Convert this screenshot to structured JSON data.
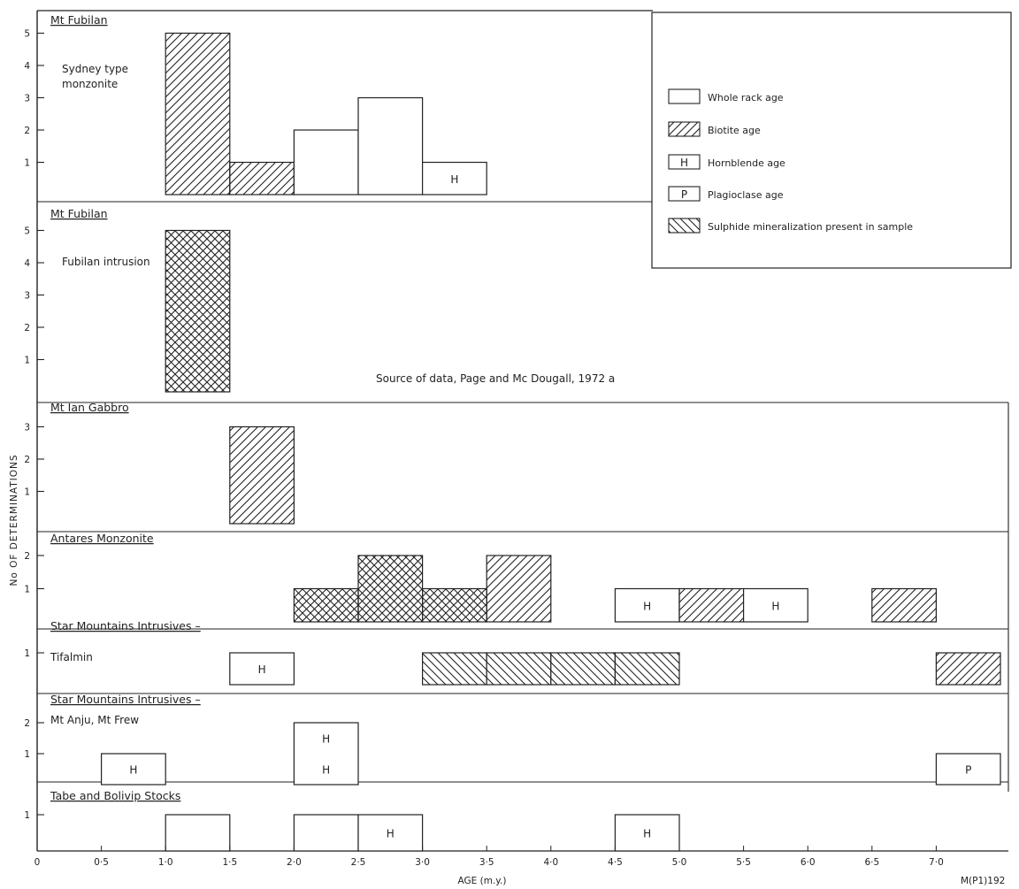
{
  "chart_data": {
    "type": "bar",
    "xlabel": "AGE (m.y.)",
    "ylabel": "No OF DETERMINATIONS",
    "x_ticks": [
      "0",
      "0·5",
      "1·0",
      "1·5",
      "2·0",
      "2·5",
      "3·0",
      "3·5",
      "4·0",
      "4·5",
      "5·0",
      "5·5",
      "6·0",
      "6·5",
      "7·0"
    ],
    "xlim": [
      0,
      7.5
    ],
    "source_note": "Source of data, Page and Mc Dougall, 1972 a",
    "figure_code": "M(P1)192",
    "legend": [
      {
        "key": "whole_rock",
        "label": "Whole rack age"
      },
      {
        "key": "biotite",
        "label": "Biotite age"
      },
      {
        "key": "hornblende",
        "label": "Hornblende age",
        "letter": "H"
      },
      {
        "key": "plagioclase",
        "label": "Plagioclase age",
        "letter": "P"
      },
      {
        "key": "sulphide",
        "label": "Sulphide mineralization present in sample"
      }
    ],
    "panels": [
      {
        "title": "Mt Fubilan",
        "subtitle": [
          "Sydney type",
          "monzonite"
        ],
        "yticks": [
          "1",
          "2",
          "3",
          "4",
          "5"
        ],
        "ymax": 5,
        "bars": [
          {
            "x0": 1.0,
            "x1": 1.5,
            "value": 5,
            "type": "biotite"
          },
          {
            "x0": 1.5,
            "x1": 2.0,
            "value": 1,
            "type": "biotite"
          },
          {
            "x0": 2.0,
            "x1": 2.5,
            "value": 2,
            "type": "whole_rock"
          },
          {
            "x0": 2.5,
            "x1": 3.0,
            "value": 3,
            "type": "whole_rock"
          },
          {
            "x0": 3.0,
            "x1": 3.5,
            "value": 1,
            "type": "hornblende",
            "letters": [
              "H"
            ]
          }
        ]
      },
      {
        "title": "Mt Fubilan",
        "subtitle": [
          "Fubilan intrusion"
        ],
        "yticks": [
          "1",
          "2",
          "3",
          "4",
          "5"
        ],
        "ymax": 5,
        "bars": [
          {
            "x0": 1.0,
            "x1": 1.5,
            "value": 5,
            "type": "biotite",
            "sulphide": 5
          }
        ]
      },
      {
        "title": "Mt Ian Gabbro",
        "subtitle": [],
        "yticks": [
          "1",
          "2",
          "3"
        ],
        "ymax": 3,
        "bars": [
          {
            "x0": 1.5,
            "x1": 2.0,
            "value": 3,
            "type": "biotite"
          }
        ]
      },
      {
        "title": "Antares Monzonite",
        "subtitle": [],
        "yticks": [
          "1",
          "2"
        ],
        "ymax": 2,
        "bars": [
          {
            "x0": 2.0,
            "x1": 2.5,
            "value": 1,
            "type": "biotite",
            "sulphide": 1
          },
          {
            "x0": 2.5,
            "x1": 3.0,
            "value": 2,
            "type": "biotite",
            "sulphide": 2
          },
          {
            "x0": 3.0,
            "x1": 3.5,
            "value": 1,
            "type": "biotite",
            "sulphide": 1
          },
          {
            "x0": 3.5,
            "x1": 4.0,
            "value": 2,
            "type": "biotite"
          },
          {
            "x0": 4.5,
            "x1": 5.0,
            "value": 1,
            "type": "hornblende",
            "letters": [
              "H"
            ]
          },
          {
            "x0": 5.0,
            "x1": 5.5,
            "value": 1,
            "type": "biotite"
          },
          {
            "x0": 5.5,
            "x1": 6.0,
            "value": 1,
            "type": "hornblende",
            "letters": [
              "H"
            ]
          },
          {
            "x0": 6.5,
            "x1": 7.0,
            "value": 1,
            "type": "biotite"
          }
        ]
      },
      {
        "title": "Star Mountains Intrusives –",
        "subtitle": [
          "Tifalmin"
        ],
        "yticks": [
          "1"
        ],
        "ymax": 1,
        "bars": [
          {
            "x0": 1.5,
            "x1": 2.0,
            "value": 1,
            "type": "hornblende",
            "letters": [
              "H"
            ]
          },
          {
            "x0": 3.0,
            "x1": 3.5,
            "value": 1,
            "type": "whole_rock",
            "sulphide": 1
          },
          {
            "x0": 3.5,
            "x1": 4.0,
            "value": 1,
            "type": "whole_rock",
            "sulphide": 1
          },
          {
            "x0": 4.0,
            "x1": 4.5,
            "value": 1,
            "type": "whole_rock",
            "sulphide": 1
          },
          {
            "x0": 4.5,
            "x1": 5.0,
            "value": 1,
            "type": "whole_rock",
            "sulphide": 1
          },
          {
            "x0": 7.0,
            "x1": 7.5,
            "value": 1,
            "type": "biotite"
          }
        ]
      },
      {
        "title": "Star Mountains Intrusives –",
        "subtitle": [
          "Mt Anju, Mt Frew"
        ],
        "yticks": [
          "1",
          "2"
        ],
        "ymax": 2,
        "bars": [
          {
            "x0": 0.5,
            "x1": 1.0,
            "value": 1,
            "type": "hornblende",
            "letters": [
              "H"
            ]
          },
          {
            "x0": 2.0,
            "x1": 2.5,
            "value": 2,
            "type": "hornblende",
            "letters": [
              "H",
              "H"
            ]
          },
          {
            "x0": 7.0,
            "x1": 7.5,
            "value": 1,
            "type": "plagioclase",
            "letters": [
              "P"
            ]
          }
        ]
      },
      {
        "title": "Tabe and Bolivip Stocks",
        "subtitle": [],
        "yticks": [
          "1"
        ],
        "ymax": 1,
        "bars": [
          {
            "x0": 1.0,
            "x1": 1.5,
            "value": 1,
            "type": "whole_rock"
          },
          {
            "x0": 2.0,
            "x1": 2.5,
            "value": 1,
            "type": "whole_rock"
          },
          {
            "x0": 2.5,
            "x1": 3.0,
            "value": 1,
            "type": "hornblende",
            "letters": [
              "H"
            ]
          },
          {
            "x0": 4.5,
            "x1": 5.0,
            "value": 1,
            "type": "hornblende",
            "letters": [
              "H"
            ]
          }
        ]
      }
    ]
  }
}
